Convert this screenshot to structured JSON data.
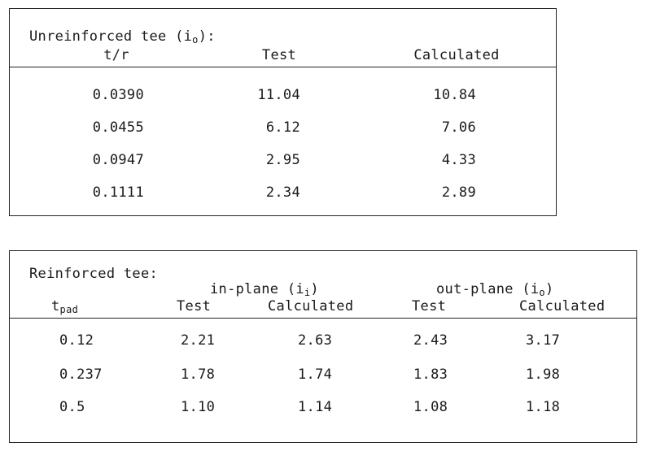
{
  "unreinforced": {
    "title_prefix": "Unreinforced tee (i",
    "title_sub": "o",
    "title_suffix": "):",
    "headers": [
      "t/r",
      "Test",
      "Calculated"
    ],
    "rows": [
      [
        "0.0390",
        "11.04",
        "10.84"
      ],
      [
        "0.0455",
        "6.12",
        "7.06"
      ],
      [
        "0.0947",
        "2.95",
        "4.33"
      ],
      [
        "0.1111",
        "2.34",
        "2.89"
      ]
    ]
  },
  "reinforced": {
    "title": "Reinforced tee:",
    "group_inplane_prefix": "in-plane (i",
    "group_inplane_sub": "i",
    "group_inplane_suffix": ")",
    "group_outplane_prefix": "out-plane (i",
    "group_outplane_sub": "o",
    "group_outplane_suffix": ")",
    "col0_main": "t",
    "col0_sub": "pad",
    "headers": [
      "Test",
      "Calculated",
      "Test",
      "Calculated"
    ],
    "rows": [
      [
        "0.12",
        "2.21",
        "2.63",
        "2.43",
        "3.17"
      ],
      [
        "0.237",
        "1.78",
        "1.74",
        "1.83",
        "1.98"
      ],
      [
        "0.5",
        "1.10",
        "1.14",
        "1.08",
        "1.18"
      ]
    ]
  }
}
